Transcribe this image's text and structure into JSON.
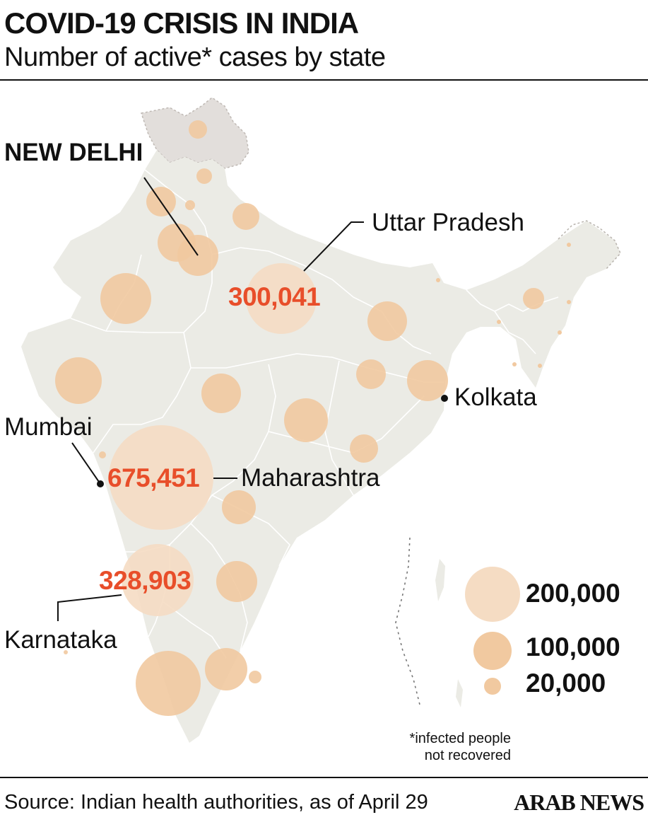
{
  "header": {
    "title": "COVID-19 CRISIS IN INDIA",
    "subtitle": "Number of active* cases by state"
  },
  "colors": {
    "bubble": "#f1c9a0",
    "bubble_large": "#f5dcc3",
    "value_text": "#e84e2a",
    "land": "#ebebe5",
    "disputed": "#e2dedb",
    "border": "#ffffff"
  },
  "labels": {
    "new_delhi": "NEW DELHI",
    "uttar_pradesh": "Uttar Pradesh",
    "uttar_pradesh_value": "300,041",
    "kolkata": "Kolkata",
    "mumbai": "Mumbai",
    "maharashtra": "Maharashtra",
    "maharashtra_value": "675,451",
    "karnataka": "Karnataka",
    "karnataka_value": "328,903"
  },
  "legend": {
    "items": [
      {
        "label": "200,000",
        "value": 200000
      },
      {
        "label": "100,000",
        "value": 100000
      },
      {
        "label": "20,000",
        "value": 20000
      }
    ]
  },
  "footnote": {
    "line1": "*infected people",
    "line2": "not recovered"
  },
  "footer": {
    "source": "Source: Indian health authorities, as of April 29",
    "brand": "ARAB NEWS"
  }
}
